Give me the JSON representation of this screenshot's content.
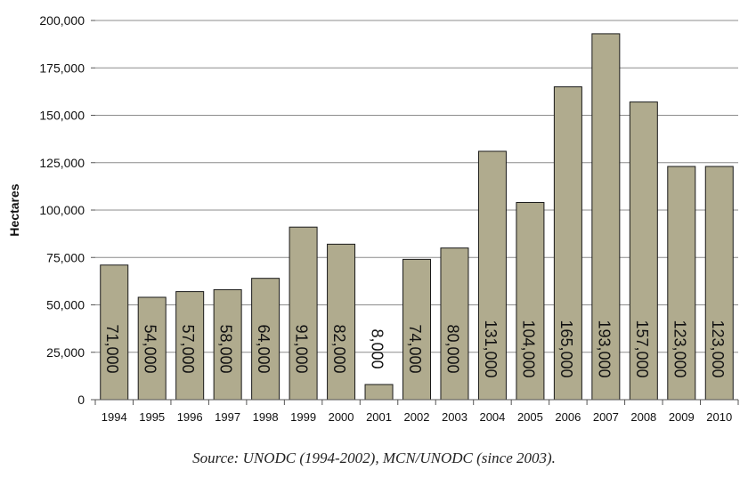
{
  "chart_data": {
    "type": "bar",
    "title": "",
    "xlabel": "",
    "ylabel": "Hectares",
    "categories": [
      "1994",
      "1995",
      "1996",
      "1997",
      "1998",
      "1999",
      "2000",
      "2001",
      "2002",
      "2003",
      "2004",
      "2005",
      "2006",
      "2007",
      "2008",
      "2009",
      "2010"
    ],
    "values": [
      71000,
      54000,
      57000,
      58000,
      64000,
      91000,
      82000,
      8000,
      74000,
      80000,
      131000,
      104000,
      165000,
      193000,
      157000,
      123000,
      123000
    ],
    "data_labels": [
      "71,000",
      "54,000",
      "57,000",
      "58,000",
      "64,000",
      "91,000",
      "82,000",
      "8,000",
      "74,000",
      "80,000",
      "131,000",
      "104,000",
      "165,000",
      "193,000",
      "157,000",
      "123,000",
      "123,000"
    ],
    "ylim": [
      0,
      200000
    ],
    "yticks": [
      0,
      25000,
      50000,
      75000,
      100000,
      125000,
      150000,
      175000,
      200000
    ],
    "ytick_labels": [
      "0",
      "25,000",
      "50,000",
      "75,000",
      "100,000",
      "125,000",
      "150,000",
      "175,000",
      "200,000"
    ],
    "grid": true,
    "legend": "none",
    "colors": {
      "bar_fill": "#b0ab8e",
      "bar_stroke": "#1a1a1a",
      "grid": "#8c8c8c",
      "axis": "#555555"
    }
  },
  "source_note": "Source: UNODC (1994-2002), MCN/UNODC (since 2003)."
}
